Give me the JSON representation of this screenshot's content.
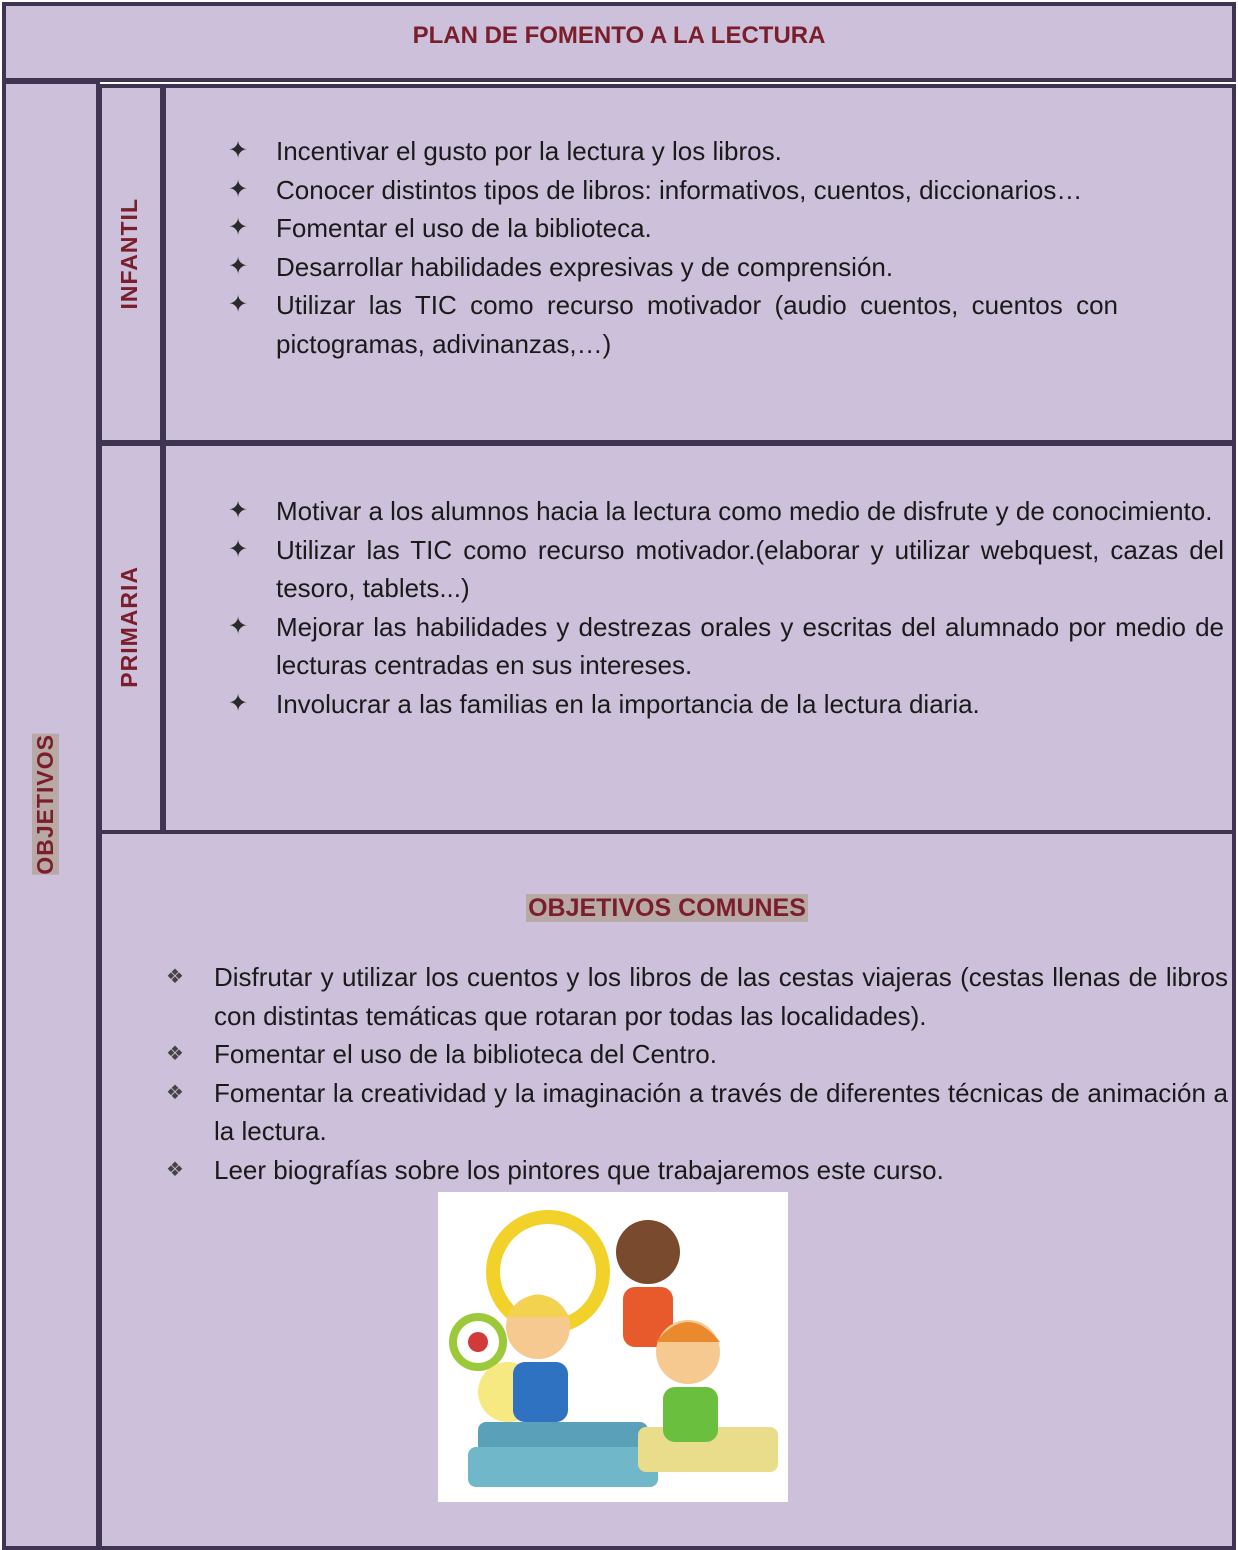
{
  "header": {
    "title": "PLAN DE FOMENTO A LA LECTURA"
  },
  "objetivos": {
    "label": "OBJETIVOS"
  },
  "infantil": {
    "label": "INFANTIL",
    "items": [
      "Incentivar el gusto por la lectura y los libros.",
      "Conocer distintos tipos de libros: informativos, cuentos, diccionarios…",
      "Fomentar el uso de la biblioteca.",
      "Desarrollar habilidades expresivas y de comprensión.",
      "Utilizar las TIC como recurso motivador (audio cuentos, cuentos con pictogramas, adivinanzas,…)"
    ]
  },
  "primaria": {
    "label": "PRIMARIA",
    "items": [
      "Motivar a los alumnos hacia  la lectura como medio de disfrute y de conocimiento.",
      "Utilizar las TIC como recurso motivador.(elaborar y utilizar webquest, cazas del tesoro, tablets...)",
      "Mejorar las habilidades y destrezas orales y escritas del alumnado por medio de lecturas centradas en sus intereses.",
      "Involucrar a las familias en la importancia de la lectura diaria."
    ]
  },
  "comunes": {
    "title": "OBJETIVOS COMUNES",
    "items": [
      "Disfrutar y utilizar los cuentos y los libros de las cestas viajeras (cestas llenas de libros con distintas temáticas que rotaran por todas las localidades).",
      "Fomentar el uso de la biblioteca del Centro.",
      "Fomentar la creatividad y la imaginación a través de diferentes técnicas de animación a la lectura.",
      "Leer biografías sobre los pintores que trabajaremos este curso."
    ]
  }
}
